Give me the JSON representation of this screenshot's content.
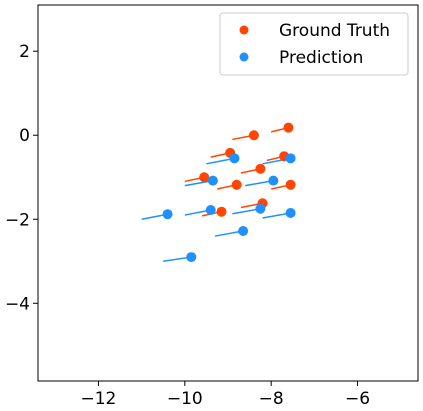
{
  "chart_data": {
    "type": "scatter",
    "title": "",
    "xlabel": "",
    "ylabel": "",
    "xlim": [
      -13.4,
      -4.6
    ],
    "ylim": [
      -5.85,
      3.1
    ],
    "xticks": [
      -12,
      -10,
      -8,
      -6
    ],
    "yticks": [
      2,
      0,
      -2,
      -4
    ],
    "xtick_labels": [
      "−12",
      "−10",
      "−8",
      "−6"
    ],
    "ytick_labels": [
      "2",
      "0",
      "−2",
      "−4"
    ],
    "grid": false,
    "legend": {
      "placement": "top-right"
    },
    "series": [
      {
        "name": "Ground Truth",
        "color": "#FF4500",
        "points": [
          {
            "x": -7.6,
            "y": 0.18,
            "tx": -8.0,
            "ty": 0.08
          },
          {
            "x": -8.4,
            "y": 0.0,
            "tx": -8.9,
            "ty": -0.1
          },
          {
            "x": -8.95,
            "y": -0.42,
            "tx": -9.4,
            "ty": -0.52
          },
          {
            "x": -7.7,
            "y": -0.5,
            "tx": -8.1,
            "ty": -0.6
          },
          {
            "x": -8.25,
            "y": -0.8,
            "tx": -8.7,
            "ty": -0.9
          },
          {
            "x": -9.55,
            "y": -1.0,
            "tx": -10.0,
            "ty": -1.1
          },
          {
            "x": -8.8,
            "y": -1.18,
            "tx": -9.25,
            "ty": -1.28
          },
          {
            "x": -7.55,
            "y": -1.18,
            "tx": -8.0,
            "ty": -1.28
          },
          {
            "x": -8.2,
            "y": -1.62,
            "tx": -8.7,
            "ty": -1.72
          },
          {
            "x": -9.15,
            "y": -1.82,
            "tx": -9.6,
            "ty": -1.92
          }
        ]
      },
      {
        "name": "Prediction",
        "color": "#1E90FF",
        "points": [
          {
            "x": -8.85,
            "y": -0.55,
            "tx": -9.5,
            "ty": -0.68
          },
          {
            "x": -7.55,
            "y": -0.55,
            "tx": -8.2,
            "ty": -0.68
          },
          {
            "x": -9.35,
            "y": -1.08,
            "tx": -10.0,
            "ty": -1.2
          },
          {
            "x": -7.95,
            "y": -1.08,
            "tx": -8.6,
            "ty": -1.2
          },
          {
            "x": -9.4,
            "y": -1.78,
            "tx": -10.0,
            "ty": -1.9
          },
          {
            "x": -8.25,
            "y": -1.75,
            "tx": -8.9,
            "ty": -1.87
          },
          {
            "x": -7.55,
            "y": -1.85,
            "tx": -8.2,
            "ty": -1.97
          },
          {
            "x": -10.4,
            "y": -1.88,
            "tx": -11.0,
            "ty": -2.0
          },
          {
            "x": -8.65,
            "y": -2.28,
            "tx": -9.3,
            "ty": -2.4
          },
          {
            "x": -9.85,
            "y": -2.9,
            "tx": -10.5,
            "ty": -3.0
          }
        ]
      }
    ]
  }
}
